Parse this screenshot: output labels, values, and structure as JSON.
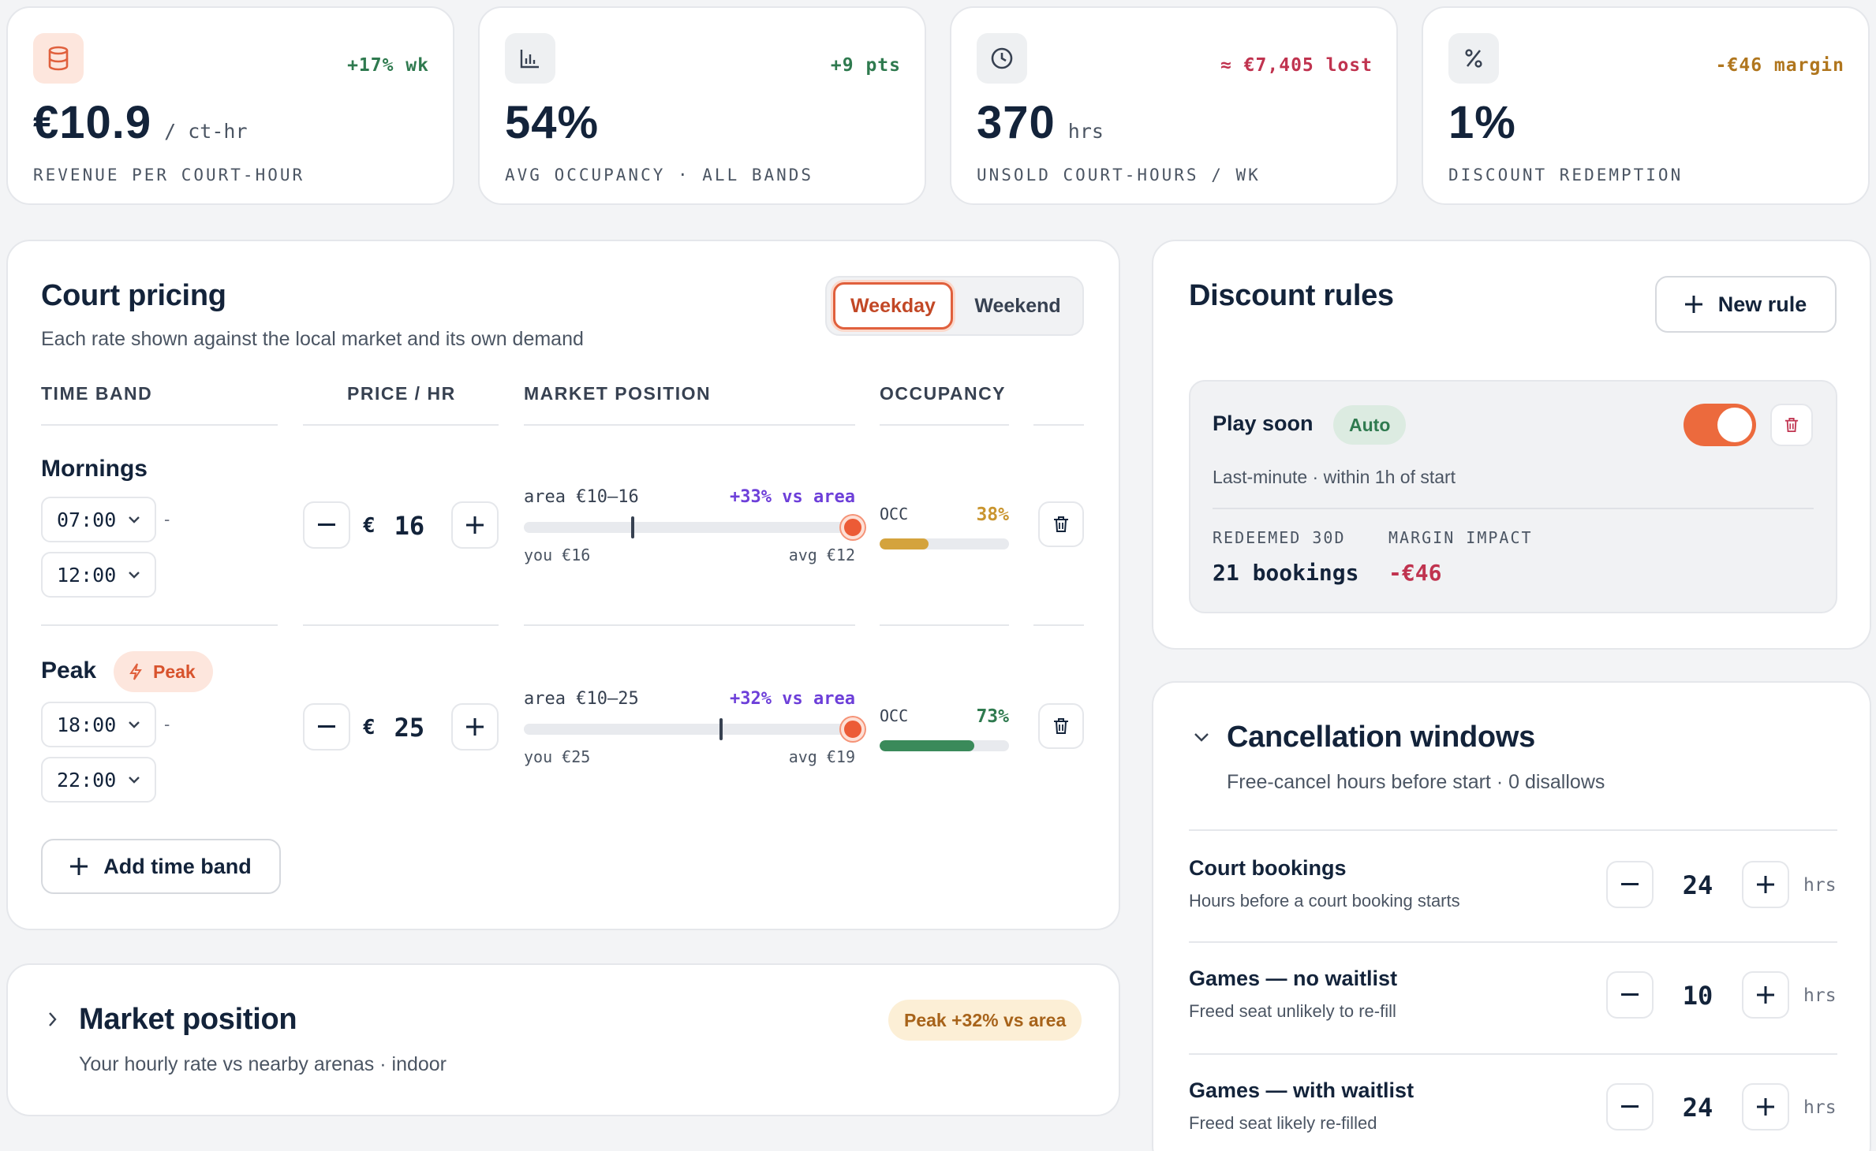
{
  "kpis": [
    {
      "value": "€10.9",
      "unit": "/ ct-hr",
      "label": "REVENUE PER COURT-HOUR",
      "delta": "+17% wk",
      "icon": "database-icon",
      "delta_color": "#2f7a4f"
    },
    {
      "value": "54%",
      "unit": "",
      "label": "AVG OCCUPANCY · ALL BANDS",
      "delta": "+9 pts",
      "icon": "bar-chart-icon",
      "delta_color": "#2f7a4f"
    },
    {
      "value": "370",
      "unit": "hrs",
      "label": "UNSOLD COURT-HOURS / WK",
      "delta": "≈ €7,405 lost",
      "icon": "clock-icon",
      "delta_color": "#c0334f"
    },
    {
      "value": "1%",
      "unit": "",
      "label": "DISCOUNT REDEMPTION",
      "delta": "-€46 margin",
      "icon": "percent-icon",
      "delta_color": "#b0761e"
    }
  ],
  "pricing": {
    "title": "Court pricing",
    "subtitle": "Each rate shown against the local market and its own demand",
    "tabs": [
      "Weekday",
      "Weekend"
    ],
    "active_tab": "Weekday",
    "columns": [
      "TIME BAND",
      "PRICE / HR",
      "MARKET POSITION",
      "OCCUPANCY"
    ],
    "bands": [
      {
        "name": "Mornings",
        "badge": "",
        "start": "07:00",
        "end": "12:00",
        "dash": "-",
        "currency": "€",
        "price": "16",
        "area_range": "area €10–16",
        "vs_area": "+33% vs area",
        "you": "you €16",
        "avg": "avg €12",
        "occ_label": "OCC",
        "occ": "38%",
        "occ_fraction": 0.38,
        "occ_color": "#d4a33d",
        "avg_fraction": 0.33,
        "you_fraction": 1.0
      },
      {
        "name": "Peak",
        "badge": "Peak",
        "start": "18:00",
        "end": "22:00",
        "dash": "-",
        "currency": "€",
        "price": "25",
        "area_range": "area €10–25",
        "vs_area": "+32% vs area",
        "you": "you €25",
        "avg": "avg €19",
        "occ_label": "OCC",
        "occ": "73%",
        "occ_fraction": 0.73,
        "occ_color": "#3a8a5a",
        "avg_fraction": 0.6,
        "you_fraction": 1.0
      }
    ],
    "add_band_label": "Add time band"
  },
  "market": {
    "title": "Market position",
    "subtitle": "Your hourly rate vs nearby arenas · indoor",
    "badge": "Peak +32% vs area"
  },
  "discounts": {
    "title": "Discount rules",
    "new_rule_label": "New rule",
    "rules": [
      {
        "name": "Play soon",
        "tag": "Auto",
        "description": "Last-minute · within 1h of start",
        "enabled": true,
        "redeemed_label": "REDEEMED 30D",
        "redeemed_value": "21 bookings",
        "margin_label": "MARGIN IMPACT",
        "margin_value": "-€46"
      }
    ]
  },
  "cancellation": {
    "title": "Cancellation windows",
    "subtitle": "Free-cancel hours before start · 0 disallows",
    "unit": "hrs",
    "rows": [
      {
        "title": "Court bookings",
        "subtitle": "Hours before a court booking starts",
        "value": "24"
      },
      {
        "title": "Games — no waitlist",
        "subtitle": "Freed seat unlikely to re-fill",
        "value": "10"
      },
      {
        "title": "Games — with waitlist",
        "subtitle": "Freed seat likely re-filled",
        "value": "24"
      }
    ]
  }
}
